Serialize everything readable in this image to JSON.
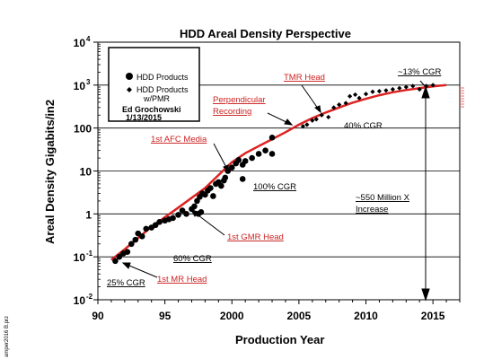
{
  "chart_data": {
    "type": "scatter",
    "title": "HDD Areal Density Perspective",
    "xlabel": "Production Year",
    "ylabel": "Areal Density Gigabits/in2",
    "xlim": [
      1990,
      2017
    ],
    "ylim_log10": [
      -2,
      4
    ],
    "x_ticks": [
      "90",
      "95",
      "2000",
      "2005",
      "2010",
      "2015"
    ],
    "y_ticks": [
      {
        "base": "10",
        "exp": "-2"
      },
      {
        "base": "10",
        "exp": "-1"
      },
      {
        "base": "1",
        "exp": ""
      },
      {
        "base": "10",
        "exp": ""
      },
      {
        "base": "100",
        "exp": ""
      },
      {
        "base": "10",
        "exp": "3"
      },
      {
        "base": "10",
        "exp": "4"
      }
    ],
    "grid_values": [
      0.1,
      1,
      10,
      100,
      1000
    ],
    "legend": {
      "items": [
        "HDD Products",
        "HDD Products",
        "w/PMR"
      ],
      "author": "Ed Grochowski",
      "date": "1/13/2015"
    },
    "side_label": "amper2016 B.prz",
    "series": [
      {
        "name": "HDD Products",
        "marker": "circle",
        "color": "#000000",
        "points": [
          [
            1991.3,
            0.08
          ],
          [
            1991.6,
            0.1
          ],
          [
            1991.9,
            0.12
          ],
          [
            1992.2,
            0.13
          ],
          [
            1992.5,
            0.2
          ],
          [
            1992.8,
            0.25
          ],
          [
            1993.0,
            0.35
          ],
          [
            1993.3,
            0.3
          ],
          [
            1993.6,
            0.45
          ],
          [
            1994.0,
            0.48
          ],
          [
            1994.3,
            0.55
          ],
          [
            1994.6,
            0.65
          ],
          [
            1995.0,
            0.7
          ],
          [
            1995.3,
            0.75
          ],
          [
            1995.6,
            0.8
          ],
          [
            1996.0,
            0.95
          ],
          [
            1996.3,
            1.2
          ],
          [
            1996.6,
            1.0
          ],
          [
            1997.0,
            1.3
          ],
          [
            1997.2,
            1.5
          ],
          [
            1997.4,
            2.0
          ],
          [
            1997.6,
            2.5
          ],
          [
            1997.8,
            3.0
          ],
          [
            1998.0,
            2.8
          ],
          [
            1998.2,
            3.5
          ],
          [
            1998.4,
            4.0
          ],
          [
            1998.6,
            2.6
          ],
          [
            1998.8,
            5.0
          ],
          [
            1999.0,
            5.5
          ],
          [
            1999.2,
            4.5
          ],
          [
            1999.4,
            6.0
          ],
          [
            1999.5,
            7.0
          ],
          [
            1999.7,
            10
          ],
          [
            2000.0,
            12
          ],
          [
            2000.3,
            15
          ],
          [
            2000.5,
            18
          ],
          [
            2000.8,
            14
          ],
          [
            2001.0,
            17
          ],
          [
            2001.5,
            20
          ],
          [
            2002.0,
            25
          ],
          [
            2002.5,
            30
          ],
          [
            2003.0,
            60
          ],
          [
            2003.0,
            25
          ],
          [
            1997.5,
            1.0
          ],
          [
            1997.7,
            1.1
          ],
          [
            2000.8,
            6.5
          ]
        ]
      },
      {
        "name": "HDD Products w/PMR",
        "marker": "diamond",
        "color": "#000000",
        "points": [
          [
            2005.3,
            110
          ],
          [
            2005.6,
            120
          ],
          [
            2006.0,
            150
          ],
          [
            2006.3,
            160
          ],
          [
            2006.7,
            200
          ],
          [
            2007.2,
            180
          ],
          [
            2007.6,
            300
          ],
          [
            2008.0,
            350
          ],
          [
            2008.5,
            380
          ],
          [
            2008.8,
            550
          ],
          [
            2009.2,
            600
          ],
          [
            2009.5,
            500
          ],
          [
            2010.0,
            620
          ],
          [
            2010.5,
            700
          ],
          [
            2011.0,
            720
          ],
          [
            2011.5,
            750
          ],
          [
            2012.0,
            800
          ],
          [
            2012.5,
            850
          ],
          [
            2013.0,
            900
          ],
          [
            2013.5,
            950
          ],
          [
            2014.0,
            800
          ],
          [
            2014.5,
            950
          ],
          [
            2015.0,
            1000
          ]
        ]
      }
    ],
    "trend_line": {
      "color": "#dd2222",
      "points": [
        [
          1991,
          0.085
        ],
        [
          1992,
          0.15
        ],
        [
          1994,
          0.5
        ],
        [
          1996,
          1.4
        ],
        [
          1998,
          4.0
        ],
        [
          1999,
          8.0
        ],
        [
          2000,
          16
        ],
        [
          2001,
          26
        ],
        [
          2002,
          38
        ],
        [
          2003,
          55
        ],
        [
          2004,
          80
        ],
        [
          2005,
          120
        ],
        [
          2006,
          170
        ],
        [
          2007,
          230
        ],
        [
          2008,
          300
        ],
        [
          2009,
          390
        ],
        [
          2010,
          480
        ],
        [
          2011,
          580
        ],
        [
          2012,
          680
        ],
        [
          2013,
          770
        ],
        [
          2014,
          850
        ],
        [
          2015,
          930
        ],
        [
          2016,
          1000
        ]
      ]
    },
    "annotations": {
      "red": [
        {
          "lines": [
            "TMR Head"
          ]
        },
        {
          "lines": [
            "Perpendicular",
            "Recording"
          ]
        },
        {
          "lines": [
            "1st AFC Media"
          ]
        },
        {
          "lines": [
            "1st GMR Head"
          ]
        },
        {
          "lines": [
            "1st MR Head"
          ]
        }
      ],
      "black": [
        {
          "lines": [
            "~13% CGR"
          ]
        },
        {
          "lines": [
            "40% CGR"
          ]
        },
        {
          "lines": [
            "100% CGR"
          ]
        },
        {
          "lines": [
            "~550 Million X",
            "Increase"
          ]
        },
        {
          "lines": [
            "60% CGR"
          ]
        },
        {
          "lines": [
            "25% CGR"
          ]
        }
      ]
    }
  }
}
